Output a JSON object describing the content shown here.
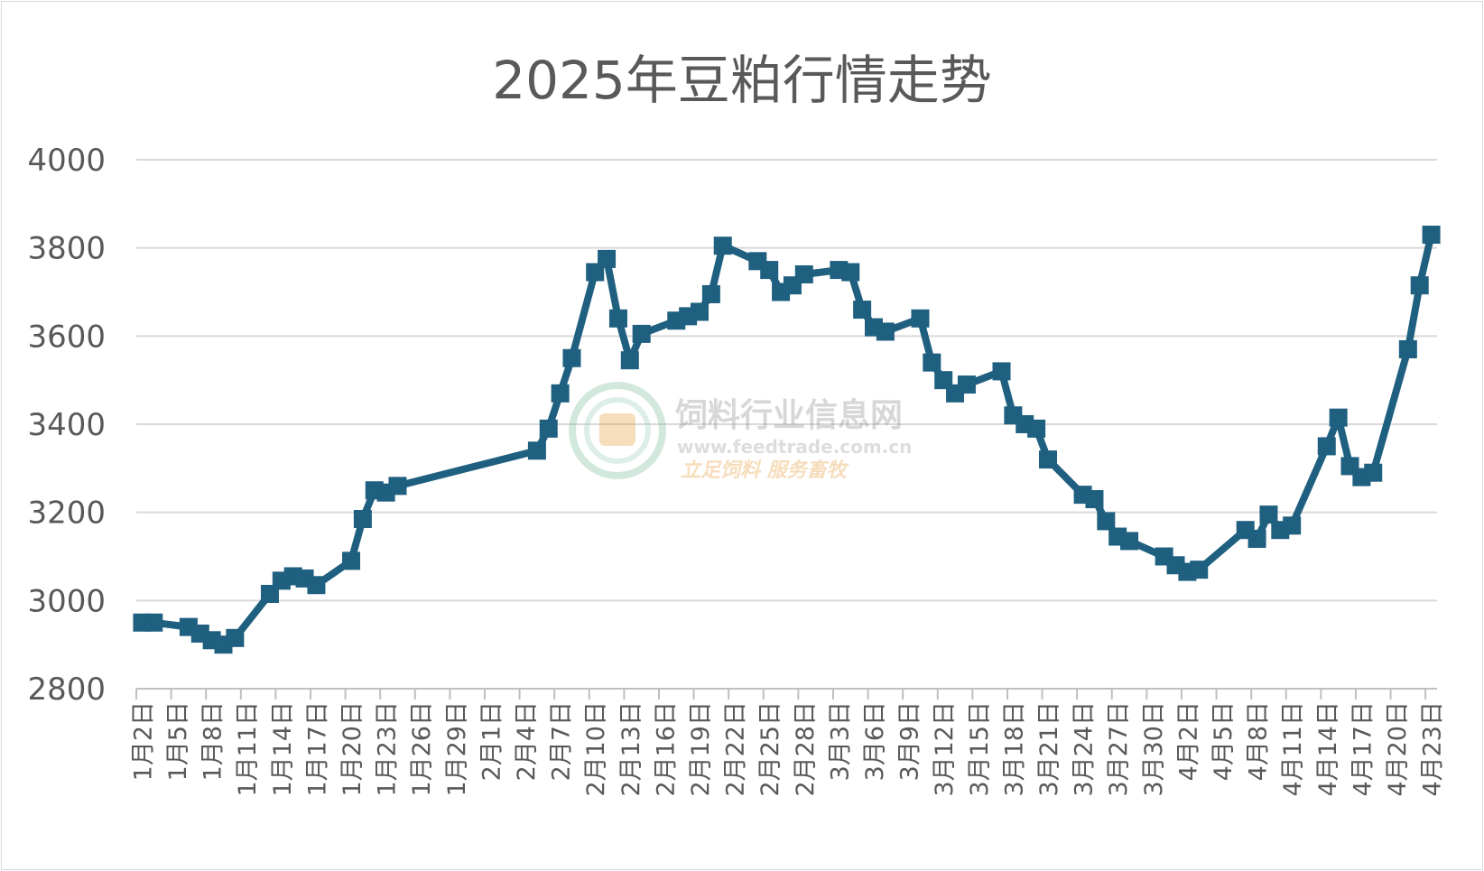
{
  "chart_data": {
    "type": "line",
    "title": "2025年豆粕行情走势",
    "xlabel": "",
    "ylabel": "",
    "ylim": [
      2800,
      4000
    ],
    "yticks": [
      2800,
      3000,
      3200,
      3400,
      3600,
      3800,
      4000
    ],
    "grid": true,
    "legend": "none",
    "line_color": "#1f5f7f",
    "tick_labels": [
      "1月2日",
      "1月5日",
      "1月8日",
      "1月11日",
      "1月14日",
      "1月17日",
      "1月20日",
      "1月23日",
      "1月26日",
      "1月29日",
      "2月1日",
      "2月4日",
      "2月7日",
      "2月10日",
      "2月13日",
      "2月16日",
      "2月19日",
      "2月22日",
      "2月25日",
      "2月28日",
      "3月3日",
      "3月6日",
      "3月9日",
      "3月12日",
      "3月15日",
      "3月18日",
      "3月21日",
      "3月24日",
      "3月27日",
      "3月30日",
      "4月2日",
      "4月5日",
      "4月8日",
      "4月11日",
      "4月14日",
      "4月17日",
      "4月20日",
      "4月23日"
    ],
    "series": [
      {
        "x": [
          "1月2日",
          "1月3日",
          "1月6日",
          "1月7日",
          "1月8日",
          "1月9日",
          "1月10日",
          "1月13日",
          "1月14日",
          "1月15日",
          "1月16日",
          "1月17日",
          "1月20日",
          "1月21日",
          "1月22日",
          "1月23日",
          "1月24日",
          "2月5日",
          "2月6日",
          "2月7日",
          "2月8日",
          "2月10日",
          "2月11日",
          "2月12日",
          "2月13日",
          "2月14日",
          "2月17日",
          "2月18日",
          "2月19日",
          "2月20日",
          "2月21日",
          "2月24日",
          "2月25日",
          "2月26日",
          "2月27日",
          "2月28日",
          "3月3日",
          "3月4日",
          "3月5日",
          "3月6日",
          "3月7日",
          "3月10日",
          "3月11日",
          "3月12日",
          "3月13日",
          "3月14日",
          "3月17日",
          "3月18日",
          "3月19日",
          "3月20日",
          "3月21日",
          "3月24日",
          "3月25日",
          "3月26日",
          "3月27日",
          "3月28日",
          "3月31日",
          "4月1日",
          "4月2日",
          "4月3日",
          "4月7日",
          "4月8日",
          "4月9日",
          "4月10日",
          "4月11日",
          "4月14日",
          "4月15日",
          "4月16日",
          "4月17日",
          "4月18日",
          "4月21日",
          "4月22日",
          "4月23日"
        ],
        "values": [
          2950,
          2950,
          2940,
          2925,
          2910,
          2900,
          2915,
          3015,
          3045,
          3055,
          3050,
          3035,
          3090,
          3185,
          3250,
          3245,
          3260,
          3340,
          3390,
          3470,
          3550,
          3745,
          3775,
          3640,
          3545,
          3605,
          3635,
          3645,
          3655,
          3695,
          3805,
          3770,
          3750,
          3700,
          3715,
          3740,
          3750,
          3745,
          3660,
          3620,
          3610,
          3640,
          3540,
          3500,
          3470,
          3490,
          3520,
          3420,
          3400,
          3390,
          3320,
          3240,
          3230,
          3180,
          3145,
          3135,
          3100,
          3080,
          3065,
          3070,
          3160,
          3140,
          3195,
          3160,
          3170,
          3350,
          3415,
          3305,
          3280,
          3290,
          3570,
          3715,
          3830
        ]
      }
    ]
  },
  "watermark": {
    "name": "饲料行业信息网",
    "url": "www.feedtrade.com.cn",
    "slogan": "立足饲料  服务畜牧"
  }
}
